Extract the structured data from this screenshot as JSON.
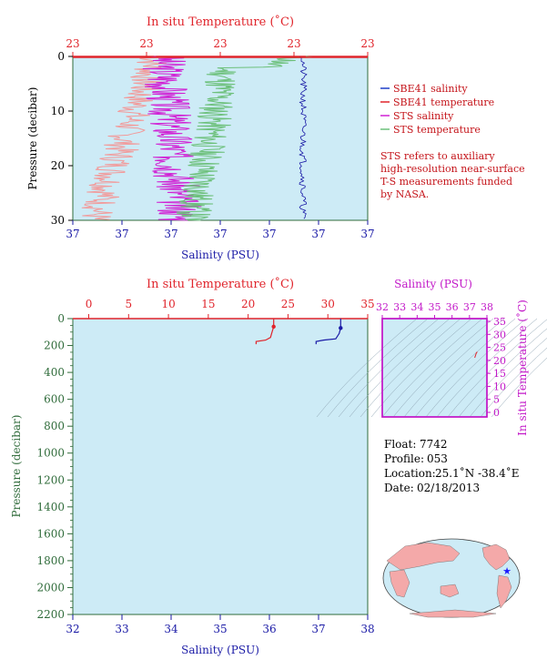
{
  "top_panel": {
    "temp_axis_title": "In situ Temperature (˚C)",
    "temp_ticks": [
      "23",
      "23",
      "23",
      "23",
      "23"
    ],
    "pressure_title": "Pressure (decibar)",
    "pressure_ticks": [
      "0",
      "10",
      "20",
      "30"
    ],
    "salinity_title": "Salinity (PSU)",
    "salinity_ticks": [
      "37",
      "37",
      "37",
      "37",
      "37",
      "37",
      "37"
    ],
    "legend": [
      {
        "label": "SBE41 salinity",
        "color": "#1f3fc8"
      },
      {
        "label": "SBE41 temperature",
        "color": "#e0242b"
      },
      {
        "label": "STS salinity",
        "color": "#d020d4"
      },
      {
        "label": "STS temperature",
        "color": "#6cc07a"
      }
    ],
    "note": [
      "STS refers to auxiliary",
      "high-resolution near-surface",
      "T-S measurements funded",
      "by NASA."
    ]
  },
  "bottom_panel": {
    "temp_axis_title": "In situ Temperature (˚C)",
    "temp_ticks": [
      "0",
      "5",
      "10",
      "15",
      "20",
      "25",
      "30",
      "35"
    ],
    "pressure_title": "Pressure (decibar)",
    "pressure_ticks": [
      "0",
      "200",
      "400",
      "600",
      "800",
      "1000",
      "1200",
      "1400",
      "1600",
      "1800",
      "2000",
      "2200"
    ],
    "salinity_title": "Salinity (PSU)",
    "salinity_ticks": [
      "32",
      "33",
      "34",
      "35",
      "36",
      "37",
      "38"
    ]
  },
  "ts_panel": {
    "salinity_title": "Salinity (PSU)",
    "salinity_ticks": [
      "32",
      "33",
      "34",
      "35",
      "36",
      "37",
      "38"
    ],
    "temp_title": "In situ Temperature (˚C)",
    "temp_ticks": [
      "0",
      "5",
      "10",
      "15",
      "20",
      "25",
      "30",
      "35"
    ]
  },
  "info": {
    "float_label": "Float:",
    "float_value": "7742",
    "profile_label": "Profile:",
    "profile_value": "053",
    "location_label": "Location:",
    "location_value": "25.1˚N  -38.4˚E",
    "date_label": "Date:",
    "date_value": "02/18/2013"
  },
  "colors": {
    "plot_bg": "#cdebf6",
    "temperature": "#e0242b",
    "salinity": "#1a1aa6",
    "sts_salinity": "#d020d4",
    "sts_temperature": "#6cc07a",
    "sts_temperature_light": "#f29a9a",
    "ts_axis": "#c218c8",
    "pressure_axis": "#2f6b3a"
  },
  "chart_data": [
    {
      "type": "line",
      "panel": "near-surface",
      "ylim": [
        30,
        0
      ],
      "series": [
        {
          "name": "SBE41 salinity",
          "x_axis": "salinity",
          "points": [
            [
              37.03,
              0.5
            ],
            [
              37.03,
              4
            ],
            [
              37.035,
              6
            ],
            [
              37.03,
              8
            ],
            [
              37.04,
              10
            ],
            [
              37.03,
              12
            ],
            [
              37.035,
              14
            ],
            [
              37.03,
              16
            ],
            [
              37.04,
              18
            ],
            [
              37.03,
              20
            ],
            [
              37.035,
              22
            ],
            [
              37.03,
              24
            ],
            [
              37.035,
              26
            ],
            [
              37.03,
              28
            ]
          ]
        },
        {
          "name": "SBE41 temperature",
          "x_axis": "temperature",
          "points": [
            [
              22.0,
              0.3
            ],
            [
              25.0,
              0.3
            ]
          ]
        },
        {
          "name": "STS salinity",
          "x_axis": "salinity",
          "points": [
            [
              36.85,
              0.5
            ],
            [
              36.8,
              2
            ],
            [
              36.9,
              3
            ],
            [
              36.82,
              5
            ],
            [
              36.88,
              7
            ],
            [
              36.83,
              9
            ],
            [
              36.9,
              11
            ],
            [
              36.84,
              13
            ],
            [
              36.9,
              15
            ],
            [
              36.83,
              17
            ],
            [
              36.9,
              19
            ],
            [
              36.85,
              21
            ],
            [
              36.92,
              23
            ],
            [
              36.86,
              25
            ],
            [
              36.93,
              27
            ],
            [
              36.88,
              29
            ]
          ]
        },
        {
          "name": "STS temperature",
          "x_axis": "temperature",
          "points": [
            [
              23.6,
              0.5
            ],
            [
              24.2,
              1
            ],
            [
              23.0,
              3
            ],
            [
              22.9,
              5
            ],
            [
              22.7,
              8
            ],
            [
              22.6,
              11
            ],
            [
              22.7,
              14
            ],
            [
              22.5,
              17
            ],
            [
              22.6,
              20
            ],
            [
              22.4,
              23
            ],
            [
              22.3,
              26
            ],
            [
              22.2,
              29
            ]
          ]
        }
      ]
    },
    {
      "type": "line",
      "panel": "full-profile",
      "xlim_temperature": [
        0,
        35
      ],
      "xlim_salinity": [
        32,
        38
      ],
      "ylim": [
        2200,
        0
      ],
      "series": [
        {
          "name": "temperature",
          "x_axis": "temperature",
          "points": [
            [
              23.2,
              0
            ],
            [
              23.2,
              60
            ],
            [
              23.0,
              100
            ],
            [
              22.8,
              140
            ],
            [
              22.2,
              160
            ],
            [
              21.0,
              170
            ],
            [
              21.0,
              190
            ]
          ]
        },
        {
          "name": "salinity",
          "x_axis": "salinity",
          "points": [
            [
              37.45,
              0
            ],
            [
              37.45,
              70
            ],
            [
              37.42,
              110
            ],
            [
              37.35,
              150
            ],
            [
              37.1,
              160
            ],
            [
              36.95,
              170
            ],
            [
              36.95,
              190
            ]
          ]
        }
      ]
    },
    {
      "type": "scatter",
      "panel": "t-s diagram",
      "xlim": [
        32,
        38
      ],
      "ylim": [
        0,
        35
      ],
      "series": [
        {
          "points": [
            [
              37.3,
              21
            ],
            [
              37.4,
              23
            ],
            [
              37.45,
              23.2
            ]
          ]
        }
      ]
    }
  ]
}
